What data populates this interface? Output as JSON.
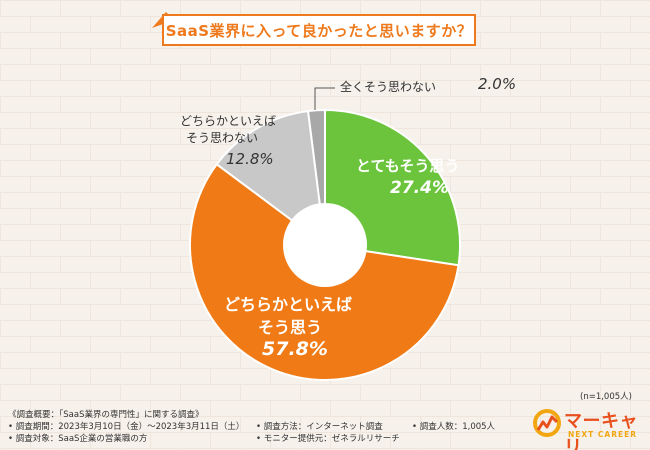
{
  "chart_data": {
    "type": "pie",
    "title": "SaaS業界に入って良かったと思いますか？",
    "categories": [
      "とてもそう思う",
      "どちらかといえばそう思う",
      "どちらかといえばそう思わない",
      "全くそう思わない"
    ],
    "values": [
      27.4,
      57.8,
      12.8,
      2.0
    ],
    "value_labels": [
      "27.4%",
      "57.8%",
      "12.8%",
      "2.0%"
    ],
    "colors": [
      "#6bc43b",
      "#f07a15",
      "#c8c8c8",
      "#a8a8a8"
    ],
    "donut": true,
    "sample_note": "(n=1,005人)"
  },
  "labels": {
    "very_yes": "とてもそう思う",
    "very_yes_pct": "27.4%",
    "rather_yes_line1": "どちらかといえば",
    "rather_yes_line2": "そう思う",
    "rather_yes_pct": "57.8%",
    "rather_no_line1": "どちらかといえば",
    "rather_no_line2": "そう思わない",
    "rather_no_pct": "12.8%",
    "not_at_all": "全くそう思わない",
    "not_at_all_pct": "2.0%"
  },
  "footer": {
    "heading": "《調査概要：「SaaS業界の専門性」に関する調査》",
    "period": "• 調査期間：2023年3月10日（金）〜2023年3月11日（土）",
    "target": "• 調査対象：SaaS企業の営業職の方",
    "method": "• 調査方法：インターネット調査",
    "provider": "• モニター提供元：ゼネラルリサーチ",
    "count": "• 調査人数：1,005人"
  },
  "logo": {
    "name": "マーキャリ",
    "sub": "NEXT CAREER"
  }
}
